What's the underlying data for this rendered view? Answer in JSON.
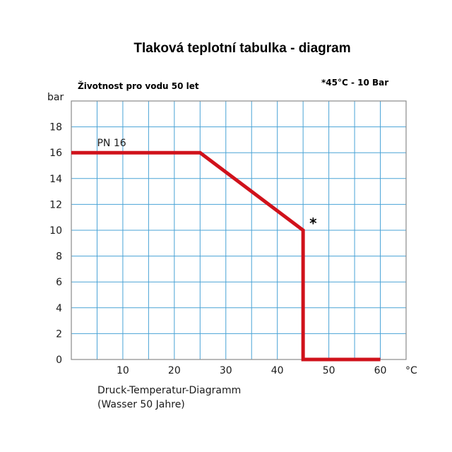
{
  "chart_data": {
    "type": "line",
    "title": "Tlaková teplotní tabulka - diagram",
    "note_left": "Životnost pro vodu 50 let",
    "note_right": "*45°C - 10 Bar",
    "ylabel": "bar",
    "xlabel": "°C",
    "caption_line1": "Druck-Temperatur-Diagramm",
    "caption_line2": "(Wasser 50 Jahre)",
    "xlim": [
      0,
      65
    ],
    "ylim": [
      0,
      20
    ],
    "grid": true,
    "x_ticks": [
      10,
      20,
      30,
      40,
      50,
      60
    ],
    "y_ticks": [
      0,
      2,
      4,
      6,
      8,
      10,
      12,
      14,
      16,
      18
    ],
    "series": [
      {
        "name": "PN 16",
        "color": "#d0121b",
        "points": [
          [
            0,
            16
          ],
          [
            25,
            16
          ],
          [
            45,
            10
          ],
          [
            45,
            0
          ],
          [
            60,
            0
          ]
        ]
      }
    ],
    "marker": {
      "symbol": "*",
      "x": 45,
      "y": 10
    },
    "grid_color": "#4aa3d6",
    "frame_color": "#8a8a8a"
  }
}
